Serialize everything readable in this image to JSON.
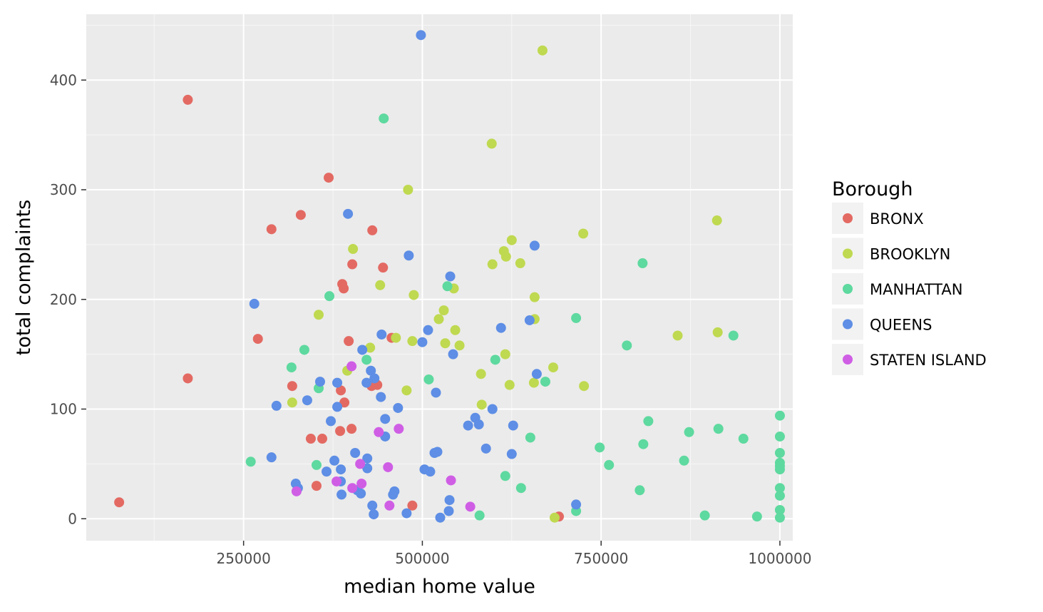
{
  "chart_data": {
    "type": "scatter",
    "title": "",
    "xlabel": "median home value",
    "ylabel": "total complaints",
    "xlim": [
      30000,
      1018000
    ],
    "ylim": [
      -20,
      460
    ],
    "x_ticks": [
      250000,
      500000,
      750000,
      1000000
    ],
    "x_tick_labels": [
      "250000",
      "500000",
      "750000",
      "1000000"
    ],
    "y_ticks": [
      0,
      100,
      200,
      300,
      400
    ],
    "y_tick_labels": [
      "0",
      "100",
      "200",
      "300",
      "400"
    ],
    "grid": true,
    "legend": {
      "title": "Borough",
      "placement": "right",
      "entries": [
        {
          "label": "BRONX",
          "color": "#e36a63"
        },
        {
          "label": "BROOKLYN",
          "color": "#bfd950"
        },
        {
          "label": "MANHATTAN",
          "color": "#5ed99f"
        },
        {
          "label": "QUEENS",
          "color": "#5e8ee5"
        },
        {
          "label": "STATEN ISLAND",
          "color": "#cf5ee5"
        }
      ]
    },
    "series": [
      {
        "name": "BRONX",
        "color": "#e36a63",
        "points": [
          [
            76000,
            15
          ],
          [
            172000,
            382
          ],
          [
            172000,
            128
          ],
          [
            270000,
            164
          ],
          [
            289000,
            264
          ],
          [
            318000,
            121
          ],
          [
            330000,
            277
          ],
          [
            344000,
            73
          ],
          [
            352000,
            30
          ],
          [
            360000,
            73
          ],
          [
            369000,
            311
          ],
          [
            385000,
            80
          ],
          [
            386000,
            117
          ],
          [
            388000,
            214
          ],
          [
            390000,
            210
          ],
          [
            391000,
            106
          ],
          [
            397000,
            162
          ],
          [
            401000,
            82
          ],
          [
            402000,
            232
          ],
          [
            430000,
            263
          ],
          [
            437000,
            122
          ],
          [
            429000,
            121
          ],
          [
            445000,
            229
          ],
          [
            457000,
            165
          ],
          [
            486000,
            12
          ],
          [
            691000,
            2
          ]
        ]
      },
      {
        "name": "BROOKLYN",
        "color": "#bfd950",
        "points": [
          [
            318000,
            106
          ],
          [
            355000,
            186
          ],
          [
            395000,
            135
          ],
          [
            403000,
            246
          ],
          [
            427000,
            156
          ],
          [
            441000,
            213
          ],
          [
            463000,
            165
          ],
          [
            478000,
            117
          ],
          [
            480000,
            300
          ],
          [
            486000,
            162
          ],
          [
            488000,
            204
          ],
          [
            523000,
            182
          ],
          [
            530000,
            190
          ],
          [
            532000,
            160
          ],
          [
            544000,
            210
          ],
          [
            546000,
            172
          ],
          [
            552000,
            158
          ],
          [
            582000,
            132
          ],
          [
            583000,
            104
          ],
          [
            597000,
            342
          ],
          [
            598000,
            232
          ],
          [
            614000,
            244
          ],
          [
            616000,
            150
          ],
          [
            617000,
            239
          ],
          [
            622000,
            122
          ],
          [
            625000,
            254
          ],
          [
            637000,
            233
          ],
          [
            656000,
            124
          ],
          [
            657000,
            202
          ],
          [
            657000,
            182
          ],
          [
            668000,
            427
          ],
          [
            683000,
            138
          ],
          [
            685000,
            1
          ],
          [
            725000,
            260
          ],
          [
            726000,
            121
          ],
          [
            857000,
            167
          ],
          [
            912000,
            272
          ],
          [
            913000,
            170
          ]
        ]
      },
      {
        "name": "MANHATTAN",
        "color": "#5ed99f",
        "points": [
          [
            260000,
            52
          ],
          [
            317000,
            138
          ],
          [
            335000,
            154
          ],
          [
            352000,
            49
          ],
          [
            355000,
            119
          ],
          [
            370000,
            203
          ],
          [
            422000,
            145
          ],
          [
            446000,
            365
          ],
          [
            509000,
            127
          ],
          [
            535000,
            212
          ],
          [
            580000,
            3
          ],
          [
            602000,
            145
          ],
          [
            616000,
            39
          ],
          [
            638000,
            28
          ],
          [
            651000,
            74
          ],
          [
            672000,
            125
          ],
          [
            715000,
            183
          ],
          [
            715000,
            7
          ],
          [
            748000,
            65
          ],
          [
            761000,
            49
          ],
          [
            786000,
            158
          ],
          [
            804000,
            26
          ],
          [
            808000,
            233
          ],
          [
            809000,
            68
          ],
          [
            816000,
            89
          ],
          [
            866000,
            53
          ],
          [
            873000,
            79
          ],
          [
            895000,
            3
          ],
          [
            914000,
            82
          ],
          [
            935000,
            167
          ],
          [
            949000,
            73
          ],
          [
            968000,
            2
          ],
          [
            1000000,
            94
          ],
          [
            1000000,
            75
          ],
          [
            1000000,
            60
          ],
          [
            1000000,
            51
          ],
          [
            1000000,
            48
          ],
          [
            1000000,
            45
          ],
          [
            1000000,
            28
          ],
          [
            1000000,
            21
          ],
          [
            1000000,
            8
          ],
          [
            1000000,
            1
          ]
        ]
      },
      {
        "name": "QUEENS",
        "color": "#5e8ee5",
        "points": [
          [
            265000,
            196
          ],
          [
            289000,
            56
          ],
          [
            296000,
            103
          ],
          [
            323000,
            32
          ],
          [
            326000,
            28
          ],
          [
            339000,
            108
          ],
          [
            357000,
            125
          ],
          [
            366000,
            43
          ],
          [
            372000,
            89
          ],
          [
            377000,
            53
          ],
          [
            381000,
            124
          ],
          [
            381000,
            102
          ],
          [
            386000,
            34
          ],
          [
            386000,
            45
          ],
          [
            387000,
            22
          ],
          [
            396000,
            278
          ],
          [
            406000,
            60
          ],
          [
            409000,
            26
          ],
          [
            414000,
            23
          ],
          [
            416000,
            154
          ],
          [
            422000,
            124
          ],
          [
            423000,
            55
          ],
          [
            423000,
            46
          ],
          [
            428000,
            135
          ],
          [
            430000,
            12
          ],
          [
            432000,
            4
          ],
          [
            433000,
            128
          ],
          [
            442000,
            111
          ],
          [
            443000,
            168
          ],
          [
            448000,
            91
          ],
          [
            448000,
            75
          ],
          [
            459000,
            22
          ],
          [
            461000,
            25
          ],
          [
            466000,
            101
          ],
          [
            478000,
            5
          ],
          [
            481000,
            240
          ],
          [
            498000,
            441
          ],
          [
            500000,
            161
          ],
          [
            503000,
            45
          ],
          [
            508000,
            172
          ],
          [
            511000,
            43
          ],
          [
            517000,
            60
          ],
          [
            519000,
            115
          ],
          [
            521000,
            61
          ],
          [
            525000,
            1
          ],
          [
            537000,
            7
          ],
          [
            538000,
            17
          ],
          [
            539000,
            221
          ],
          [
            543000,
            150
          ],
          [
            564000,
            85
          ],
          [
            574000,
            92
          ],
          [
            579000,
            86
          ],
          [
            589000,
            64
          ],
          [
            598000,
            100
          ],
          [
            610000,
            174
          ],
          [
            625000,
            59
          ],
          [
            627000,
            85
          ],
          [
            650000,
            181
          ],
          [
            657000,
            249
          ],
          [
            660000,
            132
          ],
          [
            715000,
            13
          ]
        ]
      },
      {
        "name": "STATEN ISLAND",
        "color": "#cf5ee5",
        "points": [
          [
            324000,
            25
          ],
          [
            380000,
            34
          ],
          [
            401000,
            139
          ],
          [
            402000,
            28
          ],
          [
            413000,
            50
          ],
          [
            415000,
            32
          ],
          [
            439000,
            79
          ],
          [
            452000,
            47
          ],
          [
            454000,
            12
          ],
          [
            467000,
            82
          ],
          [
            540000,
            35
          ],
          [
            567000,
            11
          ]
        ]
      }
    ]
  }
}
